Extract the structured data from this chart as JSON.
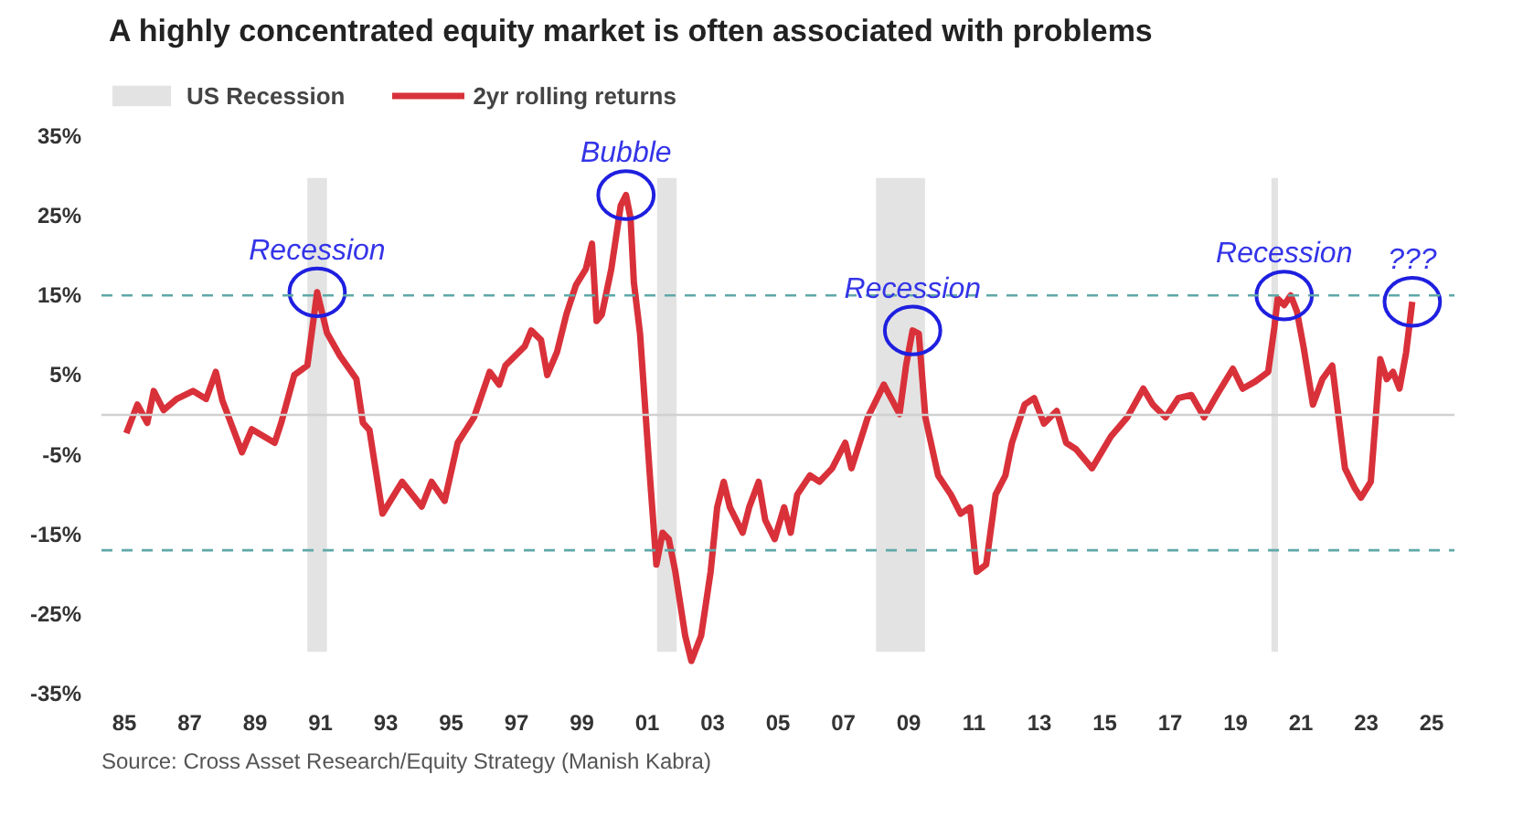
{
  "chart_data": {
    "type": "line",
    "title": "A highly concentrated equity market is often associated with problems",
    "x": [
      1985.06,
      1985.4,
      1985.7,
      1985.9,
      1986.2,
      1986.6,
      1987.1,
      1987.5,
      1987.8,
      1988.0,
      1988.6,
      1988.9,
      1989.6,
      1989.8,
      1990.2,
      1990.6,
      1990.9,
      1991.2,
      1991.6,
      1992.1,
      1992.3,
      1992.5,
      1992.9,
      1993.5,
      1994.1,
      1994.4,
      1994.8,
      1995.2,
      1995.7,
      1996.18,
      1996.47,
      1996.66,
      1997.25,
      1997.45,
      1997.75,
      1997.94,
      1998.24,
      1998.53,
      1998.82,
      1999.12,
      1999.31,
      1999.45,
      1999.61,
      1999.9,
      2000.19,
      2000.35,
      2000.49,
      2000.59,
      2000.78,
      2001.08,
      2001.28,
      2001.47,
      2001.66,
      2001.86,
      2002.16,
      2002.35,
      2002.65,
      2002.94,
      2003.14,
      2003.34,
      2003.53,
      2003.92,
      2004.12,
      2004.41,
      2004.61,
      2004.9,
      2005.19,
      2005.39,
      2005.59,
      2005.98,
      2006.27,
      2006.66,
      2007.06,
      2007.25,
      2007.75,
      2008.24,
      2008.72,
      2008.92,
      2009.12,
      2009.31,
      2009.51,
      2009.9,
      2010.29,
      2010.59,
      2010.88,
      2011.08,
      2011.37,
      2011.66,
      2011.96,
      2012.16,
      2012.55,
      2012.84,
      2013.14,
      2013.53,
      2013.82,
      2014.12,
      2014.61,
      2015.19,
      2015.69,
      2016.18,
      2016.47,
      2016.86,
      2017.25,
      2017.65,
      2018.04,
      2018.43,
      2018.92,
      2019.22,
      2019.61,
      2020.0,
      2020.19,
      2020.29,
      2020.49,
      2020.69,
      2020.88,
      2021.08,
      2021.37,
      2021.66,
      2021.96,
      2022.35,
      2022.65,
      2022.84,
      2023.14,
      2023.43,
      2023.63,
      2023.82,
      2024.02,
      2024.22,
      2024.41
    ],
    "series": [
      {
        "name": "2yr rolling returns",
        "color": "#d9313a",
        "values": [
          -2.3,
          1.3,
          -1,
          3,
          0.6,
          2,
          3,
          2,
          5.4,
          1.8,
          -4.7,
          -1.8,
          -3.5,
          -1,
          5,
          6.2,
          15.4,
          10.3,
          7.4,
          4.5,
          -1,
          -1.9,
          -12.4,
          -8.4,
          -11.5,
          -8.4,
          -10.8,
          -3.5,
          -0.3,
          5.4,
          3.8,
          6.2,
          8.6,
          10.6,
          9.4,
          5,
          7.9,
          12.7,
          16.3,
          18.3,
          21.5,
          11.8,
          12.6,
          18.3,
          26.3,
          27.6,
          24.7,
          16.7,
          10.2,
          -7.6,
          -18.8,
          -14.8,
          -15.6,
          -19.7,
          -27.7,
          -30.9,
          -27.7,
          -19.7,
          -11.6,
          -8.4,
          -11.6,
          -14.8,
          -11.6,
          -8.4,
          -13.2,
          -15.6,
          -11.6,
          -14.8,
          -10,
          -7.6,
          -8.4,
          -6.7,
          -3.5,
          -6.7,
          -0.3,
          3.8,
          0.1,
          6.2,
          10.6,
          10.2,
          -0.3,
          -7.6,
          -10,
          -12.4,
          -11.6,
          -19.7,
          -18.8,
          -10,
          -7.6,
          -3.5,
          1.3,
          2.1,
          -1.1,
          0.5,
          -3.5,
          -4.3,
          -6.7,
          -2.7,
          -0.3,
          3.3,
          1.3,
          -0.3,
          2.1,
          2.5,
          -0.3,
          2.5,
          5.8,
          3.3,
          4.2,
          5.4,
          11,
          14.6,
          13.8,
          15,
          13,
          8.6,
          1.3,
          4.5,
          6.2,
          -6.7,
          -9.2,
          -10.4,
          -8.4,
          7,
          4.5,
          5.4,
          3.3,
          7.8,
          14.2
        ]
      }
    ],
    "xlim": [
      1984.3,
      2025.7
    ],
    "ylim": [
      -35,
      35
    ],
    "xticks": [
      {
        "value": 1985,
        "label": "85"
      },
      {
        "value": 1987,
        "label": "87"
      },
      {
        "value": 1989,
        "label": "89"
      },
      {
        "value": 1991,
        "label": "91"
      },
      {
        "value": 1993,
        "label": "93"
      },
      {
        "value": 1995,
        "label": "95"
      },
      {
        "value": 1997,
        "label": "97"
      },
      {
        "value": 1999,
        "label": "99"
      },
      {
        "value": 2001,
        "label": "01"
      },
      {
        "value": 2003,
        "label": "03"
      },
      {
        "value": 2005,
        "label": "05"
      },
      {
        "value": 2007,
        "label": "07"
      },
      {
        "value": 2009,
        "label": "09"
      },
      {
        "value": 2011,
        "label": "11"
      },
      {
        "value": 2013,
        "label": "13"
      },
      {
        "value": 2015,
        "label": "15"
      },
      {
        "value": 2017,
        "label": "17"
      },
      {
        "value": 2019,
        "label": "19"
      },
      {
        "value": 2021,
        "label": "21"
      },
      {
        "value": 2023,
        "label": "23"
      },
      {
        "value": 2025,
        "label": "25"
      }
    ],
    "yticks": [
      {
        "value": -35,
        "label": "-35%"
      },
      {
        "value": -25,
        "label": "-25%"
      },
      {
        "value": -15,
        "label": "-15%"
      },
      {
        "value": -5,
        "label": "-5%"
      },
      {
        "value": 5,
        "label": "5%"
      },
      {
        "value": 15,
        "label": "15%"
      },
      {
        "value": 25,
        "label": "25%"
      },
      {
        "value": 35,
        "label": "35%"
      }
    ],
    "bands": [
      {
        "axis": "x",
        "from": 1990.6,
        "to": 1991.2,
        "label": "US Recession",
        "color": "#e3e3e3"
      },
      {
        "axis": "x",
        "from": 2001.3,
        "to": 2001.9,
        "color": "#e3e3e3"
      },
      {
        "axis": "x",
        "from": 2008.0,
        "to": 2009.5,
        "color": "#e3e3e3"
      },
      {
        "axis": "x",
        "from": 2020.1,
        "to": 2020.3,
        "color": "#e3e3e3"
      }
    ],
    "ref_lines": [
      {
        "axis": "y",
        "value": 0,
        "color": "#d0d0d0",
        "line_style": "solid"
      },
      {
        "axis": "y",
        "value": 15,
        "color": "#5fa8a8",
        "line_style": "dashed"
      },
      {
        "axis": "y",
        "value": -17,
        "color": "#5fa8a8",
        "line_style": "dashed"
      }
    ],
    "annotations": [
      {
        "text": "Recession",
        "x": 1990.9,
        "y": 15.4
      },
      {
        "text": "Bubble",
        "x": 2000.35,
        "y": 27.6
      },
      {
        "text": "Recession",
        "x": 2009.12,
        "y": 10.6
      },
      {
        "text": "Recession",
        "x": 2020.49,
        "y": 15
      },
      {
        "text": "???",
        "x": 2024.41,
        "y": 14.2
      },
      "Source: Cross Asset Research/Equity Strategy (Manish Kabra)"
    ],
    "grid": false,
    "legend": "top",
    "marker": "none",
    "line_style": "solid"
  }
}
